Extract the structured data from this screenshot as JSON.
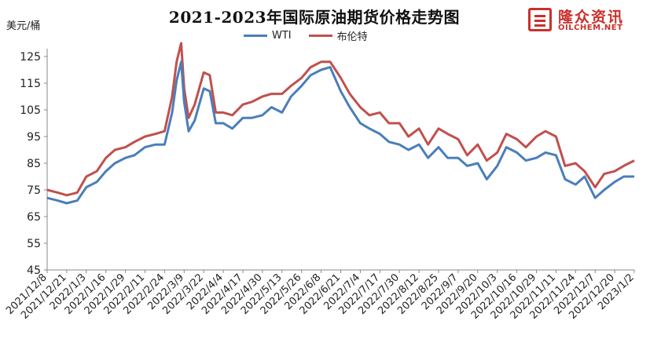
{
  "chart_data": {
    "type": "line",
    "title": "2021-2023年国际原油期货价格走势图",
    "ylabel": "美元/桶",
    "ylim": [
      45,
      125
    ],
    "yticks": [
      45,
      55,
      65,
      75,
      85,
      95,
      105,
      115,
      125
    ],
    "grid": false,
    "legend_position": "top-center",
    "tick_labels": [
      "2021/12/8",
      "2021/12/21",
      "2022/1/3",
      "2022/1/16",
      "2022/1/29",
      "2022/2/11",
      "2022/2/24",
      "2022/3/9",
      "2022/3/22",
      "2022/4/4",
      "2022/4/17",
      "2022/4/30",
      "2022/5/13",
      "2022/5/26",
      "2022/6/8",
      "2022/6/21",
      "2022/7/4",
      "2022/7/17",
      "2022/7/30",
      "2022/8/12",
      "2022/8/25",
      "2022/9/7",
      "2022/9/20",
      "2022/10/3",
      "2022/10/16",
      "2022/10/29",
      "2022/11/11",
      "2022/11/24",
      "2022/12/7",
      "2022/12/20",
      "2023/1/2"
    ],
    "x": [
      "2021/12/8",
      "2021/12/15",
      "2021/12/21",
      "2021/12/28",
      "2022/1/3",
      "2022/1/10",
      "2022/1/16",
      "2022/1/22",
      "2022/1/29",
      "2022/2/4",
      "2022/2/11",
      "2022/2/18",
      "2022/2/24",
      "2022/3/1",
      "2022/3/4",
      "2022/3/7",
      "2022/3/9",
      "2022/3/12",
      "2022/3/16",
      "2022/3/22",
      "2022/3/26",
      "2022/3/30",
      "2022/4/4",
      "2022/4/10",
      "2022/4/17",
      "2022/4/23",
      "2022/4/30",
      "2022/5/6",
      "2022/5/13",
      "2022/5/19",
      "2022/5/26",
      "2022/6/1",
      "2022/6/8",
      "2022/6/14",
      "2022/6/21",
      "2022/6/27",
      "2022/7/4",
      "2022/7/10",
      "2022/7/17",
      "2022/7/23",
      "2022/7/30",
      "2022/8/5",
      "2022/8/12",
      "2022/8/18",
      "2022/8/25",
      "2022/8/31",
      "2022/9/7",
      "2022/9/13",
      "2022/9/20",
      "2022/9/26",
      "2022/10/3",
      "2022/10/9",
      "2022/10/16",
      "2022/10/22",
      "2022/10/29",
      "2022/11/4",
      "2022/11/11",
      "2022/11/17",
      "2022/11/24",
      "2022/11/30",
      "2022/12/7",
      "2022/12/13",
      "2022/12/20",
      "2022/12/26",
      "2023/1/2"
    ],
    "series": [
      {
        "name": "WTI",
        "color": "#4a7ebb",
        "values": [
          72,
          71,
          70,
          71,
          76,
          78,
          82,
          85,
          87,
          88,
          91,
          92,
          92,
          104,
          116,
          123,
          108,
          97,
          101,
          113,
          112,
          100,
          100,
          98,
          102,
          102,
          103,
          106,
          104,
          110,
          114,
          118,
          120,
          121,
          112,
          106,
          100,
          98,
          96,
          93,
          92,
          90,
          92,
          87,
          91,
          87,
          87,
          84,
          85,
          79,
          84,
          91,
          89,
          86,
          87,
          89,
          88,
          79,
          77,
          80,
          72,
          75,
          78,
          80,
          80
        ]
      },
      {
        "name": "布伦特",
        "color": "#c0504d",
        "values": [
          75,
          74,
          73,
          74,
          80,
          82,
          87,
          90,
          91,
          93,
          95,
          96,
          97,
          110,
          123,
          130,
          113,
          102,
          107,
          119,
          118,
          104,
          104,
          103,
          107,
          108,
          110,
          111,
          111,
          114,
          117,
          121,
          123,
          123,
          117,
          111,
          106,
          103,
          104,
          100,
          100,
          95,
          98,
          92,
          98,
          96,
          94,
          88,
          92,
          86,
          89,
          96,
          94,
          91,
          95,
          97,
          95,
          84,
          85,
          82,
          76,
          81,
          82,
          84,
          86
        ]
      }
    ]
  },
  "watermark": {
    "cn": "隆众资讯",
    "en": "OILCHEM.NET"
  }
}
